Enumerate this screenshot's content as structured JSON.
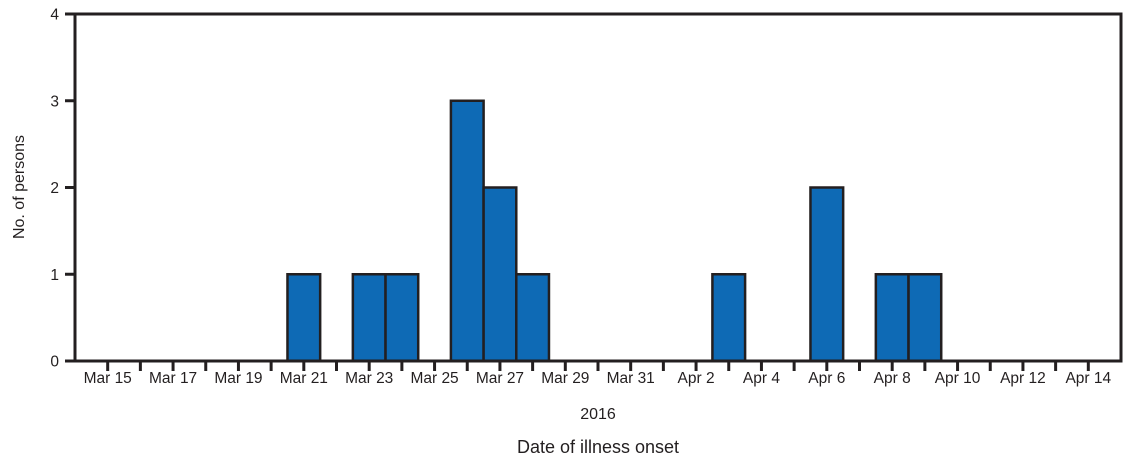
{
  "figure": {
    "y_axis_title": "No. of persons",
    "x_axis_year_label": "2016",
    "x_axis_title": "Date of illness onset"
  },
  "chart_data": {
    "type": "bar",
    "title": "",
    "ylabel": "No. of persons",
    "xlabel": "Date of illness onset",
    "x_axis_secondary_label": "2016",
    "ylim": [
      0,
      4
    ],
    "yticks": [
      0,
      1,
      2,
      3,
      4
    ],
    "categories": [
      "Mar 15",
      "Mar 16",
      "Mar 17",
      "Mar 18",
      "Mar 19",
      "Mar 20",
      "Mar 21",
      "Mar 22",
      "Mar 23",
      "Mar 24",
      "Mar 25",
      "Mar 26",
      "Mar 27",
      "Mar 28",
      "Mar 29",
      "Mar 30",
      "Mar 31",
      "Apr 1",
      "Apr 2",
      "Apr 3",
      "Apr 4",
      "Apr 5",
      "Apr 6",
      "Apr 7",
      "Apr 8",
      "Apr 9",
      "Apr 10",
      "Apr 11",
      "Apr 12",
      "Apr 13",
      "Apr 14"
    ],
    "values": [
      0,
      0,
      0,
      0,
      0,
      0,
      1,
      0,
      1,
      1,
      0,
      3,
      2,
      1,
      0,
      0,
      0,
      0,
      0,
      1,
      0,
      0,
      2,
      0,
      1,
      1,
      0,
      0,
      0,
      0,
      0
    ],
    "label_every": 2,
    "grid": false,
    "legend": false,
    "bar_color": "#0e6ab5",
    "axis_color": "#231f20",
    "background": "#ffffff"
  }
}
